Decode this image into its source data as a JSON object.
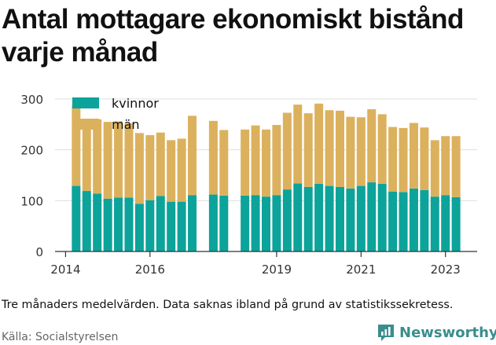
{
  "title": "Antal mottagare ekonomiskt bistånd varje månad",
  "note": "Tre månaders medelvärden. Data saknas ibland på grund av statistikssekretess.",
  "source": "Källa: Socialstyrelsen",
  "brand": "Newsworthy",
  "colors": {
    "kvinnor": "#0ca39a",
    "man": "#dcb15d",
    "brand": "#3a8d8d",
    "grid": "#dddddd"
  },
  "icon": "newsworthy-logo-icon",
  "chart_data": {
    "type": "bar",
    "stacked": true,
    "x_unit": "year (decimal, quarterly observations)",
    "x": [
      2014.25,
      2014.5,
      2014.75,
      2015.0,
      2015.25,
      2015.5,
      2015.75,
      2016.0,
      2016.25,
      2016.5,
      2016.75,
      2017.0,
      2017.5,
      2017.75,
      2018.25,
      2018.5,
      2018.75,
      2019.0,
      2019.25,
      2019.5,
      2019.75,
      2020.0,
      2020.25,
      2020.5,
      2020.75,
      2021.0,
      2021.25,
      2021.5,
      2021.75,
      2022.0,
      2022.25,
      2022.5,
      2022.75,
      2023.0,
      2023.25
    ],
    "series": [
      {
        "name": "kvinnor",
        "values": [
          129,
          119,
          114,
          104,
          106,
          106,
          94,
          101,
          109,
          98,
          98,
          111,
          112,
          110,
          110,
          111,
          108,
          111,
          122,
          134,
          127,
          133,
          129,
          127,
          124,
          129,
          136,
          133,
          118,
          117,
          124,
          121,
          108,
          111,
          107
        ]
      },
      {
        "name": "män",
        "values": [
          159,
          137,
          146,
          151,
          150,
          146,
          139,
          128,
          125,
          121,
          124,
          156,
          145,
          129,
          130,
          137,
          132,
          138,
          151,
          155,
          145,
          158,
          149,
          150,
          141,
          135,
          144,
          137,
          127,
          126,
          129,
          123,
          111,
          116,
          120
        ]
      }
    ],
    "x_ticks": [
      2014,
      2016,
      2019,
      2021,
      2023
    ],
    "x_tick_labels": [
      "2014",
      "2016",
      "2019",
      "2021",
      "2023"
    ],
    "y_ticks": [
      0,
      100,
      200,
      300
    ],
    "xlim": [
      2013.75,
      2023.75
    ],
    "ylim": [
      0,
      300
    ],
    "grid": true,
    "legend": {
      "position": "top-left",
      "entries": [
        "kvinnor",
        "män"
      ]
    }
  }
}
